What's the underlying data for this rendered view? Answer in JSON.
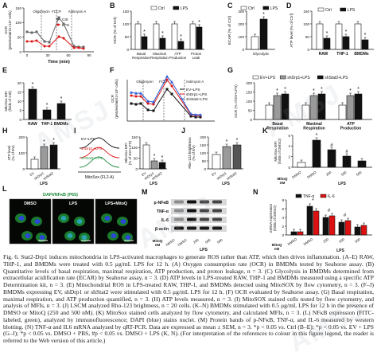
{
  "watermark": "AMSJ",
  "panels": {
    "A": {
      "letter": "A",
      "ylabel": "OCR\n(pMoles/min/1×10⁵ cells)",
      "xlabel": "Time (min)",
      "ticks_y": [
        "0",
        "50",
        "100",
        "150"
      ],
      "ticks_x": [
        "0",
        "30",
        "60",
        "90"
      ],
      "drugs": [
        "Oligomycin",
        "FCCP",
        "Antimycin A"
      ],
      "legend": [
        "Ctrl",
        "LPS"
      ]
    },
    "B": {
      "letter": "B",
      "ylabel": "OCR (% of Ctrl)",
      "legend": [
        "Ctrl",
        "LPS"
      ],
      "ticks_y": [
        "0",
        "50",
        "100",
        "150"
      ],
      "categories": [
        "Basal\nRespiration",
        "Maximal\nRespiration",
        "ATP\nProduction",
        "Proton\nLeak"
      ]
    },
    "C": {
      "letter": "C",
      "ylabel": "ECAR (% of Ctrl)",
      "legend": [
        "Ctrl",
        "LPS"
      ],
      "ticks_y": [
        "0",
        "100",
        "200",
        "300"
      ],
      "category": "Glycolytic"
    },
    "D": {
      "letter": "D",
      "ylabel": "ATP level (% of Ctrl)",
      "legend": [
        "Ctrl",
        "LPS"
      ],
      "ticks_y": [
        "0",
        "50",
        "100",
        "150"
      ],
      "categories": [
        "RAW",
        "THP-1",
        "BMDMs"
      ]
    },
    "E": {
      "letter": "E",
      "ylabel": "MitoSox MFI\n(folds of Ctrl)",
      "ticks_y": [
        "0",
        "5",
        "10",
        "15",
        "20"
      ],
      "categories": [
        "RAW",
        "THP-1",
        "BMDMs"
      ]
    },
    "F": {
      "letter": "F",
      "ylabel": "OCR\n(pMoles/min/1×10⁵ cells)",
      "drugs": [
        "Oligomycin",
        "FCCP",
        "Antimycin A"
      ],
      "legend": [
        "EV+LPS",
        "shDrp1+LPS",
        "shStat2+LPS"
      ]
    },
    "G": {
      "letter": "G",
      "ylabel": "OCR (% of EV+LPS)",
      "legend": [
        "EV+LPS",
        "shDrp1+LPS",
        "shStat2+LPS"
      ],
      "ticks_y": [
        "0",
        "50",
        "100",
        "150",
        "200"
      ],
      "categories": [
        "Basal\nRespiration",
        "Maximal\nRespiration",
        "ATP\nProduction"
      ]
    },
    "H": {
      "letter": "H",
      "ylabel": "ATP level\n(% of EV)",
      "ticks_y": [
        "0",
        "100",
        "200"
      ],
      "categories": [
        "EV",
        "shDrp1",
        "shStat2"
      ],
      "group": "LPS"
    },
    "I": {
      "letter": "I",
      "xlabel": "MitoSox (FL2-A)",
      "labels": [
        "EV+LPS",
        "shDrp1+LPS",
        "shStat2+LPS"
      ],
      "ylabel": "MitoSox MFI\n(% of EV+LPS)",
      "categories": [
        "EV",
        "shDrp1",
        "shStat2"
      ],
      "group": "LPS"
    },
    "J": {
      "letter": "J",
      "ylabel": "Rho-123 brightness\n(% of EV)",
      "categories": [
        "EV",
        "shDrp1",
        "shStat2"
      ],
      "group": "LPS"
    },
    "K": {
      "letter": "K",
      "ylabel": "MitoSox MFI\n(folds of DMSO)",
      "categories": [
        "DMSO",
        "DMSO",
        "250",
        "500",
        "500"
      ],
      "mitoq_label": "MitoQ\nnM",
      "group": "LPS"
    },
    "L": {
      "letter": "L",
      "title": "DAPI/NFκB (P65)",
      "conditions": [
        "DMSO",
        "LPS",
        "LPS+MitoQ"
      ]
    },
    "M": {
      "letter": "M",
      "bands": [
        "p-NFκB",
        "TNF-α",
        "IL-6",
        "β-actin"
      ],
      "lanes": [
        "DMSO",
        "DMSO",
        "250",
        "500",
        "500"
      ],
      "mitoq_label": "MitoQ\nnM",
      "group": "LPS"
    },
    "N": {
      "letter": "N",
      "legend": [
        "TNF-α",
        "IL-6"
      ],
      "ylabel": "mRNA expression\n(folds of DMSO)",
      "categories": [
        "DMSO",
        "DMSO",
        "250",
        "500",
        "500"
      ],
      "mitoq_label": "MitoQ\nnM",
      "group": "LPS"
    }
  },
  "caption": "Fig. 6. Stat2-Drp1 induces mitochondria in LPS-activated macrophages to generate ROS rather than ATP, which then drives inflammation. (A–E) RAW, THP-1, and BMDMs were treated with 0.5 μg/mL LPS for 12 h. (A) Oxygen consumption rate (OCR) in BMDMs tested by Seahorse assay. (B) Quantitative levels of basal respiration, maximal respiration, ATP production, and proton leakage, n = 3. (C) Glycolysis in BMDMs determined from extracellular acidification rate (ECAR) by Seahorse assay, n = 3. (D) ATP levels in LPS-treated RAW, THP-1 and BMDMs measured using a specific ATP Determination kit, n = 3. (E) Mitochondrial ROS in LPS-treated RAW, THP-1, and BMDMs detected using MitoSOX by flow cytometry, n = 3. (F–J) BMDMs expressing EV, shDrp1 or shStat2 were stimulated with 0.5 μg/mL LPS for 12 h. (F) OCR evaluated by Seahorse assay. (G) Basal respiration, maximal respiration, and ATP production quantified, n = 3. (H) ATP levels measured, n = 3. (I) MitoSOX stained cells tested by flow cytometry, and analysis of MFIs, n = 3. (J) LSCM analyzed Rho-123 brightness, n = 20 cells. (K–N) BMDMs stimulated with 0.5 μg/mL LPS for 12 h in the presence of DMSO or MitoQ (250 and 500 nM). (K) MitoSox stained cells analyzed by flow cytometry, and calculated MFIs, n = 3. (L) NFκB expression (FITC-labeled, green), analyzed by immunofluorescence; DAPI (blue) stains nuclei. (M) Protein bands of p-NFκB, TNF-α, and IL-6 measured by western blotting. (N) TNF-α and IL6 mRNA analyzed by qRT-PCR. Data are expressed as mean ± SEM, n = 3. *p < 0.05 vs. Ctrl (B–E); *p < 0.05 vs. EV + LPS (G–J); *p < 0.05 vs. DMSO + PBS, #p < 0.05 vs. DMSO + LPS (K, N). (For interpretation of the references to colour in this figure legend, the reader is referred to the Web version of this article.)"
}
